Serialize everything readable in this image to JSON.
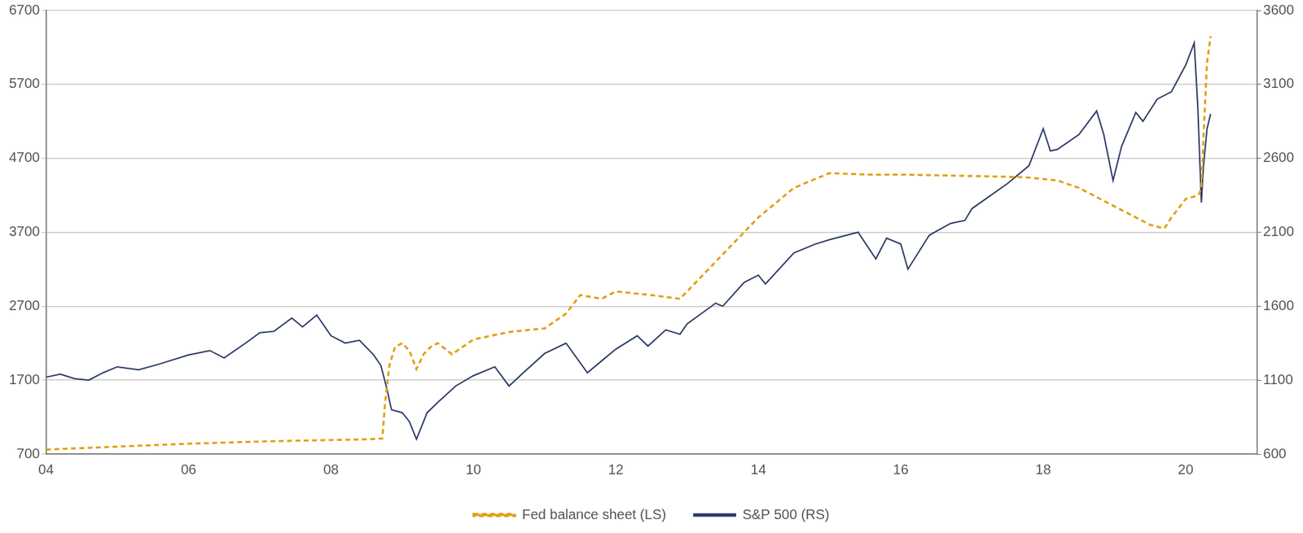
{
  "chart_data": {
    "type": "line",
    "xlim": [
      2004,
      2021
    ],
    "xticks": [
      {
        "value": 2004,
        "label": "04"
      },
      {
        "value": 2006,
        "label": "06"
      },
      {
        "value": 2008,
        "label": "08"
      },
      {
        "value": 2010,
        "label": "10"
      },
      {
        "value": 2012,
        "label": "12"
      },
      {
        "value": 2014,
        "label": "14"
      },
      {
        "value": 2016,
        "label": "16"
      },
      {
        "value": 2018,
        "label": "18"
      },
      {
        "value": 2020,
        "label": "20"
      }
    ],
    "ylim": [
      700,
      6700
    ],
    "yticks": [
      700,
      1700,
      2700,
      3700,
      4700,
      5700,
      6700
    ],
    "y2lim": [
      600,
      3600
    ],
    "y2ticks": [
      600,
      1100,
      1600,
      2100,
      2600,
      3100,
      3600
    ],
    "grid": true,
    "legend": "bottom",
    "series": [
      {
        "name": "Fed balance sheet (LS)",
        "color": "#e0a010",
        "line_style": "dashed",
        "axis": "y",
        "x": [
          2004.0,
          2004.5,
          2005.0,
          2006.0,
          2007.0,
          2008.0,
          2008.5,
          2008.72,
          2008.76,
          2008.82,
          2008.9,
          2009.0,
          2009.1,
          2009.2,
          2009.3,
          2009.4,
          2009.5,
          2009.7,
          2010.0,
          2010.5,
          2011.0,
          2011.3,
          2011.5,
          2011.8,
          2012.0,
          2012.5,
          2012.9,
          2013.2,
          2013.5,
          2014.0,
          2014.5,
          2015.0,
          2015.5,
          2016.0,
          2016.5,
          2017.0,
          2017.5,
          2017.8,
          2018.2,
          2018.5,
          2019.0,
          2019.5,
          2019.7,
          2019.8,
          2020.0,
          2020.18,
          2020.22,
          2020.26,
          2020.3,
          2020.35
        ],
        "values": [
          760,
          780,
          800,
          840,
          870,
          890,
          900,
          910,
          1400,
          1900,
          2150,
          2200,
          2100,
          1850,
          2050,
          2150,
          2200,
          2050,
          2250,
          2350,
          2400,
          2600,
          2850,
          2800,
          2900,
          2850,
          2800,
          3100,
          3400,
          3900,
          4300,
          4500,
          4480,
          4480,
          4470,
          4460,
          4450,
          4440,
          4400,
          4300,
          4050,
          3800,
          3750,
          3900,
          4150,
          4200,
          4300,
          5200,
          6000,
          6350
        ]
      },
      {
        "name": "S&P 500 (RS)",
        "color": "#2b3a67",
        "line_style": "solid",
        "axis": "y2",
        "x": [
          2004.0,
          2004.2,
          2004.4,
          2004.6,
          2004.8,
          2005.0,
          2005.3,
          2005.6,
          2006.0,
          2006.3,
          2006.5,
          2006.8,
          2007.0,
          2007.2,
          2007.45,
          2007.6,
          2007.8,
          2008.0,
          2008.2,
          2008.4,
          2008.6,
          2008.7,
          2008.78,
          2008.85,
          2009.0,
          2009.1,
          2009.2,
          2009.35,
          2009.5,
          2009.75,
          2010.0,
          2010.3,
          2010.5,
          2010.7,
          2011.0,
          2011.3,
          2011.6,
          2011.8,
          2012.0,
          2012.3,
          2012.45,
          2012.7,
          2012.9,
          2013.0,
          2013.4,
          2013.5,
          2013.8,
          2014.0,
          2014.1,
          2014.5,
          2014.8,
          2015.0,
          2015.4,
          2015.65,
          2015.8,
          2016.0,
          2016.1,
          2016.4,
          2016.7,
          2016.9,
          2017.0,
          2017.5,
          2017.8,
          2018.0,
          2018.1,
          2018.2,
          2018.5,
          2018.75,
          2018.85,
          2018.98,
          2019.1,
          2019.3,
          2019.4,
          2019.6,
          2019.8,
          2020.0,
          2020.12,
          2020.17,
          2020.22,
          2020.25,
          2020.3,
          2020.35
        ],
        "values": [
          1120,
          1140,
          1110,
          1100,
          1150,
          1190,
          1170,
          1210,
          1270,
          1300,
          1250,
          1350,
          1420,
          1430,
          1520,
          1460,
          1540,
          1400,
          1350,
          1370,
          1270,
          1200,
          1050,
          900,
          880,
          820,
          700,
          880,
          950,
          1060,
          1130,
          1190,
          1060,
          1150,
          1280,
          1350,
          1150,
          1230,
          1310,
          1400,
          1330,
          1440,
          1410,
          1480,
          1620,
          1600,
          1760,
          1810,
          1750,
          1960,
          2020,
          2050,
          2100,
          1920,
          2060,
          2020,
          1850,
          2080,
          2160,
          2180,
          2260,
          2430,
          2550,
          2800,
          2650,
          2660,
          2760,
          2920,
          2760,
          2450,
          2680,
          2910,
          2850,
          3000,
          3050,
          3230,
          3380,
          2950,
          2300,
          2550,
          2800,
          2900
        ]
      }
    ]
  }
}
